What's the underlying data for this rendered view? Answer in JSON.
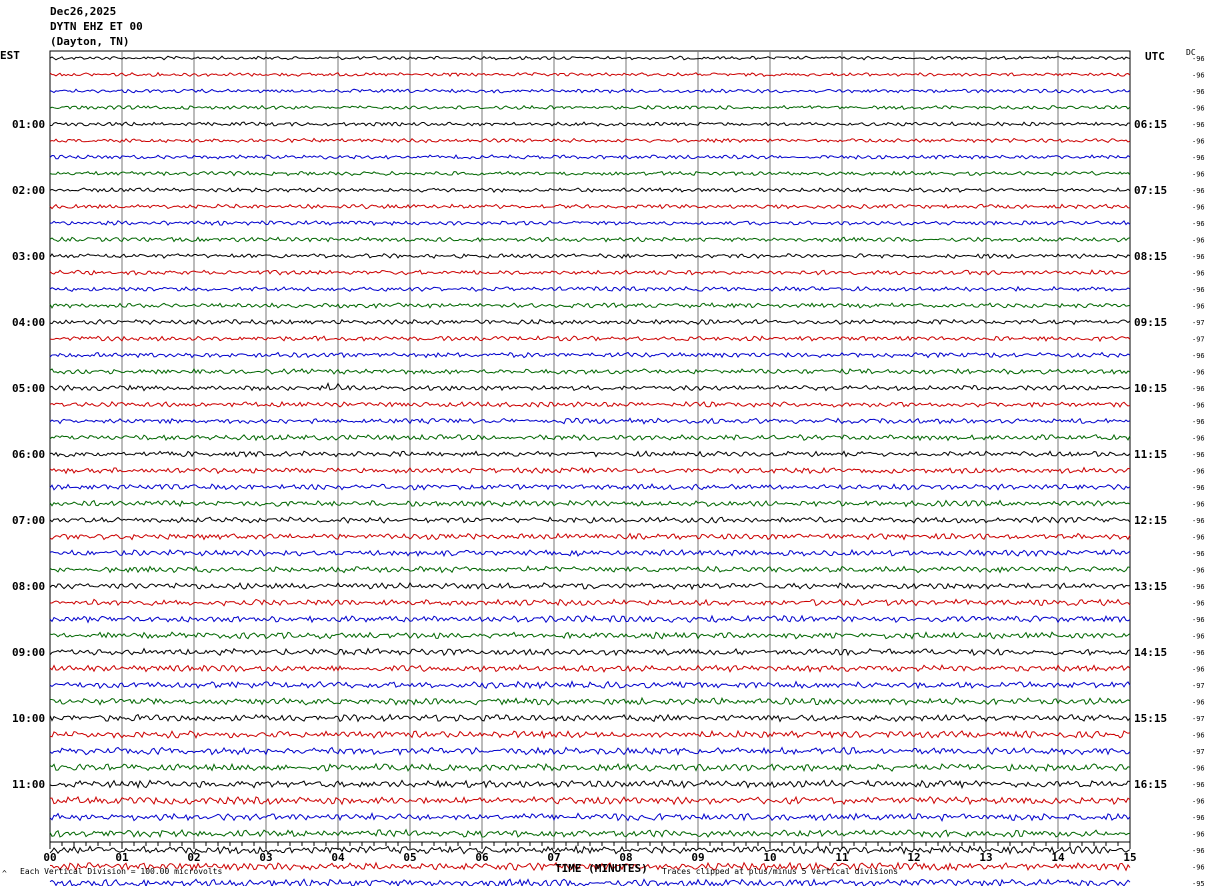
{
  "header": {
    "date": "Dec26,2025",
    "station": "DYTN EHZ ET 00",
    "location": "(Dayton, TN)"
  },
  "left_timezone": "EST",
  "right_timezone": "UTC",
  "dc_label": "DC",
  "footer": {
    "scale_note": "Each Vertical Division =  100.00 microvolts",
    "clip_note": "Traces clipped at plus/minus 5 vertical divisions",
    "corner_mark": "^"
  },
  "chart_data": {
    "type": "line",
    "subtype": "helicorder",
    "xlabel": "TIME (MINUTES)",
    "x_ticks": [
      "00",
      "01",
      "02",
      "03",
      "04",
      "05",
      "06",
      "07",
      "08",
      "09",
      "10",
      "11",
      "12",
      "13",
      "14",
      "15"
    ],
    "xlim": [
      0,
      15
    ],
    "grid": "vertical lines at each minute",
    "trace_colors": [
      "#000000",
      "#cc0000",
      "#0000cc",
      "#006600"
    ],
    "est_hour_labels": [
      "01:00",
      "02:00",
      "03:00",
      "04:00",
      "05:00",
      "06:00",
      "07:00",
      "08:00",
      "09:00",
      "10:00",
      "11:00"
    ],
    "utc_hour_labels": [
      "06:15",
      "07:15",
      "08:15",
      "09:15",
      "10:15",
      "11:15",
      "12:15",
      "13:15",
      "14:15",
      "15:15",
      "16:15"
    ],
    "dc_offsets": [
      "-96",
      "-96",
      "-96",
      "-96",
      "-96",
      "-96",
      "-96",
      "-96",
      "-96",
      "-96",
      "-96",
      "-96",
      "-96",
      "-96",
      "-96",
      "-96",
      "-97",
      "-97",
      "-96",
      "-96",
      "-96",
      "-96",
      "-96",
      "-96",
      "-96",
      "-96",
      "-96",
      "-96",
      "-96",
      "-96",
      "-96",
      "-96",
      "-96",
      "-96",
      "-96",
      "-96",
      "-96",
      "-96",
      "-97",
      "-96",
      "-97",
      "-96",
      "-97",
      "-96",
      "-96",
      "-96",
      "-96",
      "-96",
      "-96",
      "-96",
      "-95",
      "-95"
    ],
    "events": [
      {
        "trace": 20,
        "start_min": 3.6,
        "end_min": 4.0,
        "amplitude": "elevated"
      }
    ]
  }
}
